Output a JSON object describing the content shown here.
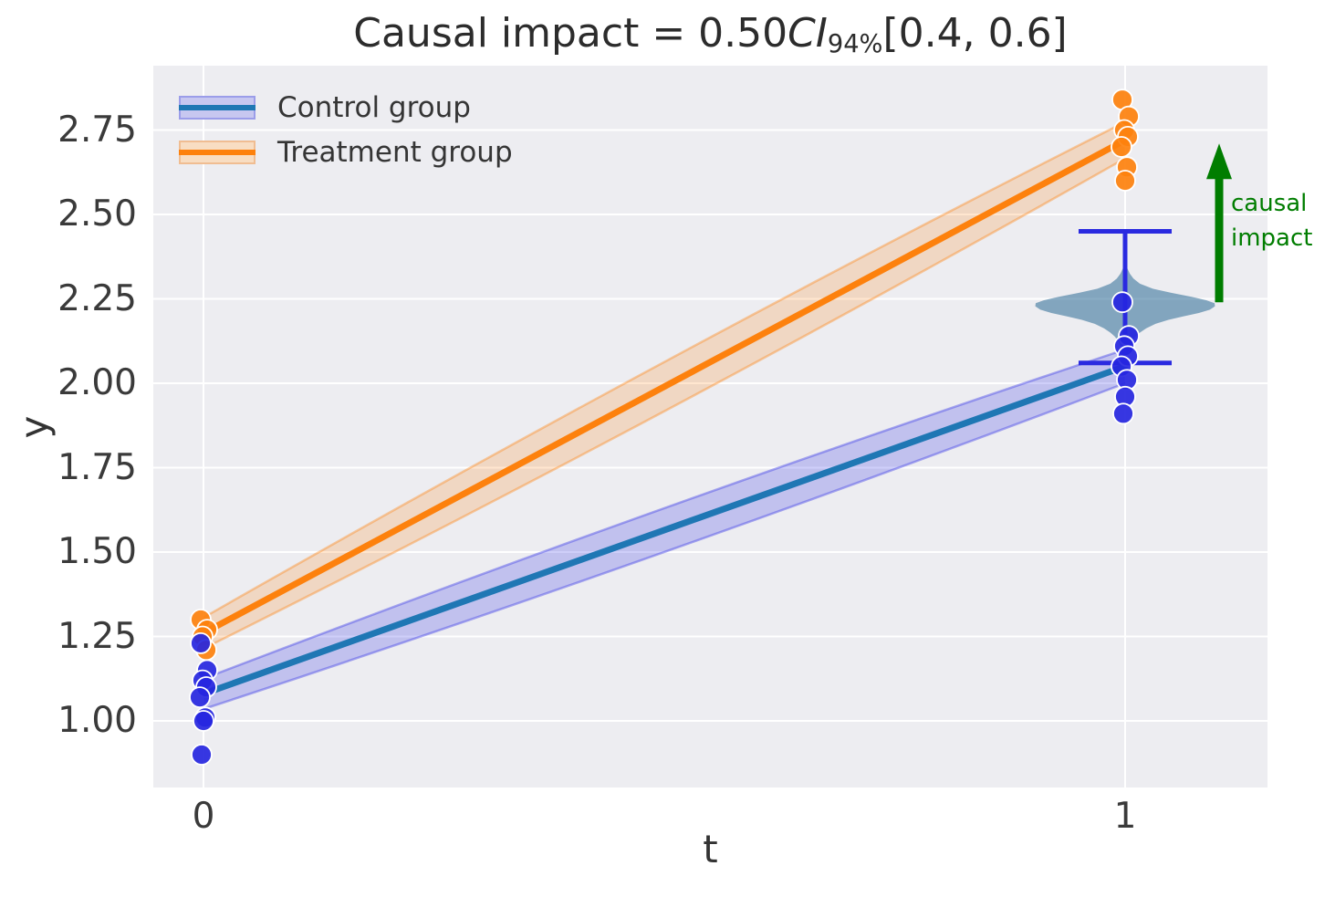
{
  "title": {
    "prefix": "Causal impact = 0.50",
    "ci": "CI",
    "ci_sub": "94%",
    "interval": "[0.4, 0.6]"
  },
  "legend": [
    {
      "label": "Control group",
      "band_fill": "#c7c7f0",
      "band_edge": "#9b9de9",
      "line_color": "#1f77b4"
    },
    {
      "label": "Treatment group",
      "band_fill": "#f8ddc2",
      "band_edge": "#f0bd92",
      "line_color": "#fd810d"
    }
  ],
  "axes": {
    "xlabel": "t",
    "ylabel": "y",
    "background": "#ededf1",
    "grid_color": "#ffffff"
  },
  "annotation": {
    "line1": "causal",
    "line2": "impact",
    "color": "#007d00"
  },
  "chart_data": {
    "type": "line",
    "title": "Causal impact = 0.50 CI 94% [0.4, 0.6]",
    "xlabel": "t",
    "ylabel": "y",
    "xlim": [
      -0.054,
      1.154
    ],
    "ylim": [
      0.8,
      2.94
    ],
    "x_tick_values": [
      0,
      1
    ],
    "x_tick_labels": [
      "0",
      "1"
    ],
    "y_ticks": [
      1.0,
      1.25,
      1.5,
      1.75,
      2.0,
      2.25,
      2.5,
      2.75
    ],
    "grid": true,
    "legend_position": "upper left",
    "series": [
      {
        "name": "Control group",
        "x": [
          0,
          1
        ],
        "y": [
          1.08,
          2.05
        ],
        "band_halfwidth": [
          0.045,
          0.065,
          0.05
        ],
        "line_color": "#1f77b4",
        "band_fill": "rgba(70,70,230,0.26)",
        "band_edge": "rgba(70,70,230,0.45)"
      },
      {
        "name": "Treatment group",
        "x": [
          0,
          1
        ],
        "y": [
          1.26,
          2.72
        ],
        "band_halfwidth": [
          0.046,
          0.073,
          0.054
        ],
        "line_color": "#fd810d",
        "band_fill": "rgba(253,129,13,0.20)",
        "band_edge": "rgba(253,129,13,0.38)"
      }
    ],
    "scatter": [
      {
        "group": "Control",
        "t": 0,
        "y": [
          1.23,
          1.15,
          1.12,
          1.1,
          1.07,
          1.01,
          1.0,
          0.9
        ],
        "color": "#2626e0"
      },
      {
        "group": "Control",
        "t": 1,
        "y": [
          2.24,
          2.14,
          2.11,
          2.08,
          2.05,
          2.01,
          1.96,
          1.91
        ],
        "color": "#2626e0"
      },
      {
        "group": "Treatment",
        "t": 0,
        "y": [
          1.3,
          1.27,
          1.25,
          1.21
        ],
        "color": "#fd810d"
      },
      {
        "group": "Treatment",
        "t": 1,
        "y": [
          2.84,
          2.79,
          2.75,
          2.73,
          2.7,
          2.64,
          2.6
        ],
        "color": "#fd810d"
      }
    ],
    "counterfactual": {
      "violin": {
        "x": 1,
        "color": "rgba(42,105,148,0.55)",
        "profile": [
          [
            2.357,
            0.001
          ],
          [
            2.34,
            0.0025
          ],
          [
            2.325,
            0.005
          ],
          [
            2.31,
            0.009
          ],
          [
            2.295,
            0.016
          ],
          [
            2.28,
            0.03
          ],
          [
            2.268,
            0.05
          ],
          [
            2.256,
            0.072
          ],
          [
            2.246,
            0.088
          ],
          [
            2.237,
            0.097
          ],
          [
            2.228,
            0.0975
          ],
          [
            2.218,
            0.092
          ],
          [
            2.208,
            0.08
          ],
          [
            2.198,
            0.063
          ],
          [
            2.188,
            0.047
          ],
          [
            2.176,
            0.033
          ],
          [
            2.163,
            0.023
          ],
          [
            2.15,
            0.016
          ],
          [
            2.138,
            0.011
          ],
          [
            2.124,
            0.0075
          ],
          [
            2.11,
            0.005
          ],
          [
            2.096,
            0.0035
          ],
          [
            2.085,
            0.0025
          ]
        ]
      },
      "errorbar": {
        "x": 1,
        "low": 2.06,
        "high": 2.45,
        "cap_halfwidth": 0.0505,
        "color": "#2a2ae0"
      }
    },
    "impact_arrow": {
      "x": 1.102,
      "y_from": 2.24,
      "y_to": 2.71,
      "color": "#007d00",
      "label": [
        "causal",
        "impact"
      ]
    }
  }
}
